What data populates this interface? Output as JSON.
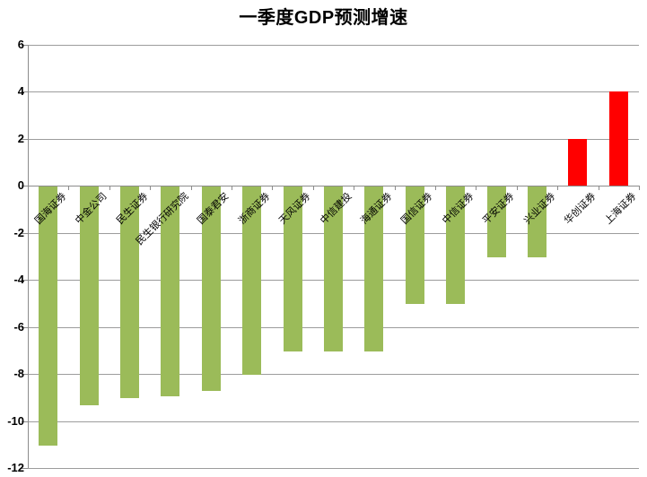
{
  "page": {
    "title": "一季度GDP预测增速"
  },
  "colors": {
    "positive_bar": "#ff0000",
    "negative_bar": "#9bbb59",
    "gridline": "#9c9c9c",
    "axis": "#8c8c8c",
    "text": "#000000",
    "background": "#ffffff"
  },
  "chart_data": {
    "type": "bar",
    "title": "一季度GDP预测增速",
    "categories": [
      "国海证券",
      "中金公司",
      "民生证券",
      "民生银行研究院",
      "国泰君安",
      "浙商证券",
      "天风证券",
      "中信建投",
      "海通证券",
      "国信证券",
      "中信证券",
      "平安证券",
      "兴业证券",
      "华创证券",
      "上海证券"
    ],
    "values": [
      -11,
      -9.3,
      -9,
      -8.9,
      -8.7,
      -8,
      -7,
      -7,
      -7,
      -5,
      -5,
      -3,
      -3,
      2,
      4
    ],
    "xlabel": "",
    "ylabel": "",
    "ylim": [
      -12,
      6
    ],
    "ytick_step": 2,
    "ytick_labels": [
      "6",
      "4",
      "2",
      "0",
      "-2",
      "-4",
      "-6",
      "-8",
      "-10",
      "-12"
    ],
    "grid": true,
    "legend": "none",
    "bar_color_rule": "negative values green #9bbb59, positive values red #ff0000"
  }
}
